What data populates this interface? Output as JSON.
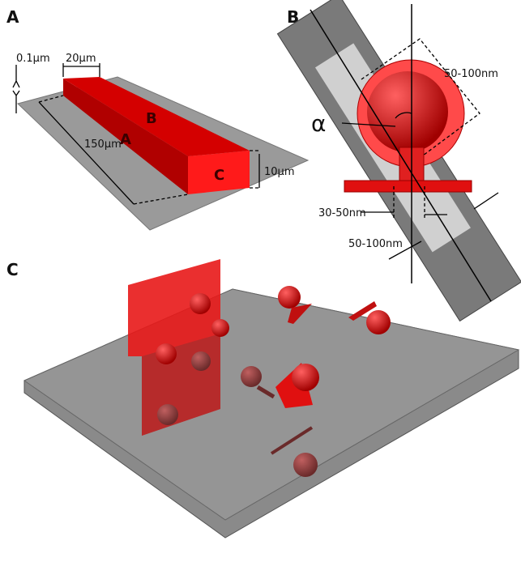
{
  "panels": [
    {
      "label": "A",
      "annotations": [
        "0.1µm",
        "20µm",
        "150µm",
        "10µm"
      ],
      "faces": [
        "A",
        "B",
        "C"
      ]
    },
    {
      "label": "B",
      "annotations": [
        "50-100nm",
        "α",
        "30-50nm",
        "50-100nm"
      ]
    },
    {
      "label": "C"
    }
  ]
}
